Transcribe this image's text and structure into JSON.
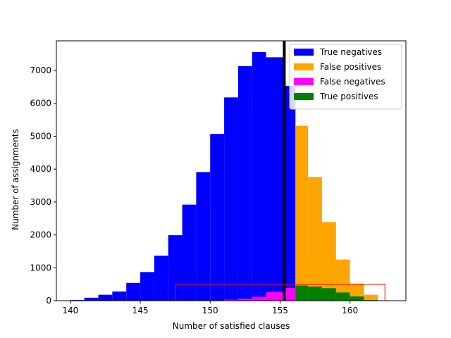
{
  "chart_data": {
    "type": "bar",
    "xlabel": "Number of satisfied clauses",
    "ylabel": "Number of assignments",
    "xlim": [
      139,
      164
    ],
    "ylim": [
      0,
      7900
    ],
    "x_ticks": [
      140,
      145,
      150,
      155,
      160
    ],
    "y_ticks": [
      0,
      1000,
      2000,
      3000,
      4000,
      5000,
      6000,
      7000
    ],
    "threshold_x": 155.3,
    "highlight_box": {
      "x0": 147.5,
      "x1": 162.5,
      "y0": 0,
      "y1": 500,
      "color": "#ff0000"
    },
    "legend_position": "top-right",
    "bin_edges": [
      140,
      141,
      142,
      143,
      144,
      145,
      146,
      147,
      148,
      149,
      150,
      151,
      152,
      153,
      154,
      155.3,
      156.1,
      157,
      158,
      159,
      160,
      161,
      162
    ],
    "series": [
      {
        "name": "True negatives",
        "color": "#0000ff",
        "values": [
          20,
          90,
          180,
          280,
          540,
          870,
          1370,
          1990,
          2920,
          3910,
          5070,
          6180,
          7130,
          7560,
          7400,
          6530,
          0,
          0,
          0,
          0,
          0,
          0
        ]
      },
      {
        "name": "False positives",
        "color": "#ffa500",
        "values": [
          0,
          0,
          0,
          0,
          0,
          0,
          0,
          0,
          0,
          0,
          0,
          0,
          0,
          0,
          0,
          0,
          5320,
          3760,
          2390,
          1250,
          520,
          180
        ]
      },
      {
        "name": "False negatives",
        "color": "#ff00ff",
        "values": [
          0,
          0,
          0,
          0,
          0,
          0,
          0,
          0,
          0,
          5,
          10,
          30,
          60,
          120,
          260,
          390,
          0,
          0,
          0,
          0,
          0,
          0
        ]
      },
      {
        "name": "True positives",
        "color": "#008000",
        "values": [
          0,
          0,
          0,
          0,
          0,
          0,
          0,
          0,
          0,
          0,
          0,
          0,
          0,
          0,
          0,
          0,
          460,
          430,
          380,
          250,
          130,
          20
        ]
      }
    ]
  }
}
